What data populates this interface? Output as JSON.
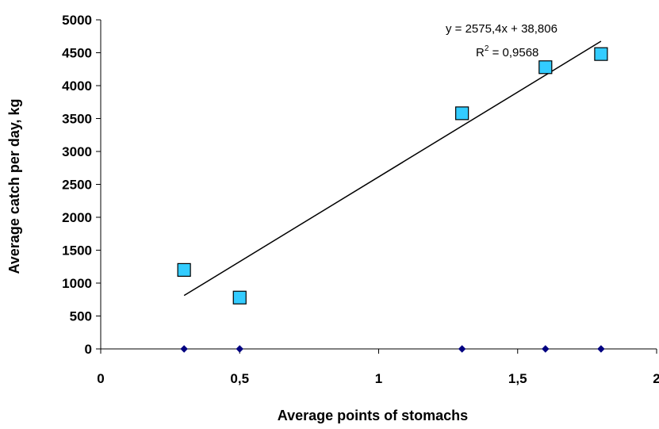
{
  "chart_data": {
    "type": "scatter",
    "xlabel": "Average points of stomachs",
    "ylabel": "Average catch per day, kg",
    "xlim": [
      0,
      2
    ],
    "ylim": [
      0,
      5000
    ],
    "x_ticks": [
      0,
      0.5,
      1,
      1.5,
      2
    ],
    "x_tick_labels": [
      "0",
      "0,5",
      "1",
      "1,5",
      "2"
    ],
    "y_ticks": [
      0,
      500,
      1000,
      1500,
      2000,
      2500,
      3000,
      3500,
      4000,
      4500,
      5000
    ],
    "y_tick_labels": [
      "0",
      "500",
      "1000",
      "1500",
      "2000",
      "2500",
      "3000",
      "3500",
      "4000",
      "4500",
      "5000"
    ],
    "grid": false,
    "series": [
      {
        "marker": "square",
        "color": "#33CCFF",
        "x": [
          0.3,
          0.5,
          1.3,
          1.6,
          1.8
        ],
        "y": [
          1200,
          780,
          3580,
          4280,
          4480
        ]
      },
      {
        "marker": "diamond",
        "color": "#000080",
        "x": [
          0.3,
          0.5,
          1.3,
          1.6,
          1.8
        ],
        "y": [
          0,
          0,
          0,
          0,
          0
        ]
      }
    ],
    "trendline": {
      "slope": 2575.4,
      "intercept": 38.806,
      "x_range": [
        0.3,
        1.8
      ],
      "equation": "y = 2575,4x + 38,806",
      "r2_prefix": "R",
      "r2_sup": "2",
      "r2_suffix": " = 0,9568"
    }
  }
}
